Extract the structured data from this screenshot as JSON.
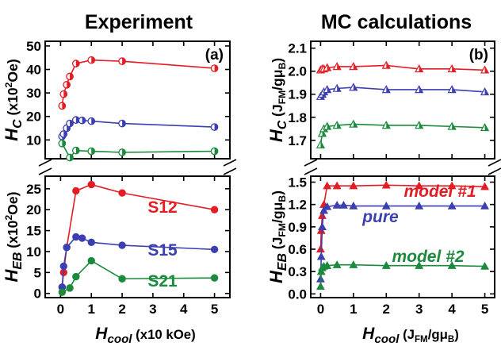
{
  "chart_data": [
    {
      "type": "line",
      "column_title": "Experiment",
      "panel_label": "(a)",
      "x_label": {
        "main": "H",
        "sub": "cool",
        "units": " (x10 kOe)"
      },
      "x_ticks": [
        "0",
        "1",
        "2",
        "3",
        "4",
        "5"
      ],
      "x_range": [
        -0.5,
        5.5
      ],
      "top": {
        "y_label": {
          "main": "H",
          "sub": "C",
          "units": " (x10",
          "sup": "2",
          "units_end": "Oe)"
        },
        "y_ticks": [
          "10",
          "20",
          "30",
          "40",
          "50"
        ],
        "y_range": [
          2,
          52
        ],
        "series": [
          {
            "color": "#e41c24",
            "x": [
              0.05,
              0.1,
              0.2,
              0.3,
              0.5,
              1,
              2,
              5
            ],
            "y": [
              24.5,
              29.5,
              33.5,
              37,
              42.5,
              44,
              43.5,
              40.5
            ]
          },
          {
            "color": "#3b3fb0",
            "x": [
              0.05,
              0.1,
              0.2,
              0.3,
              0.5,
              0.7,
              1,
              2,
              5
            ],
            "y": [
              11.5,
              12.5,
              15,
              17,
              18.5,
              18.3,
              18,
              17,
              15.5
            ]
          },
          {
            "color": "#1b8a3c",
            "x": [
              0.05,
              0.3,
              0.5,
              1,
              2,
              5
            ],
            "y": [
              8.5,
              2.5,
              5.5,
              5.2,
              4.7,
              5.2
            ]
          }
        ]
      },
      "bottom": {
        "y_label": {
          "main": "H",
          "sub": "EB",
          "units": " (x10",
          "sup": "2",
          "units_end": "Oe)"
        },
        "y_ticks": [
          "0",
          "5",
          "10",
          "15",
          "20",
          "25"
        ],
        "y_range": [
          -1,
          28
        ],
        "series": [
          {
            "name": "S12",
            "color": "#e41c24",
            "x": [
              0.05,
              0.1,
              0.2,
              0.5,
              1,
              2,
              5
            ],
            "y": [
              1.5,
              5,
              11,
              24.5,
              26,
              24,
              20
            ]
          },
          {
            "name": "S15",
            "color": "#3b3fb0",
            "x": [
              0.05,
              0.1,
              0.2,
              0.5,
              0.7,
              1,
              2,
              5
            ],
            "y": [
              1.5,
              6.5,
              11,
              13.5,
              13.2,
              12.2,
              11.5,
              10.5
            ]
          },
          {
            "name": "S21",
            "color": "#1b8a3c",
            "x": [
              0.05,
              0.3,
              0.5,
              1,
              2,
              5
            ],
            "y": [
              0.3,
              1.3,
              4,
              7.8,
              3.5,
              3.7
            ]
          }
        ]
      }
    },
    {
      "type": "line",
      "column_title": "MC calculations",
      "panel_label": "(b)",
      "x_label": {
        "main": "H",
        "sub": "cool",
        "units": " (J",
        "units_sub": "FM",
        "units_end": "/gμ",
        "units_end_sub": "B",
        "units_close": ")"
      },
      "x_ticks": [
        "0",
        "1",
        "2",
        "3",
        "4",
        "5"
      ],
      "x_range": [
        -0.3,
        5.3
      ],
      "top": {
        "y_label": {
          "main": "H",
          "sub": "C",
          "units": " (J",
          "units_sub": "FM",
          "units_end": "/gμ",
          "units_end_sub": "B",
          "units_close": ")"
        },
        "y_ticks": [
          "1.7",
          "1.8",
          "1.9",
          "2.0",
          "2.1"
        ],
        "y_range": [
          1.62,
          2.13
        ],
        "series": [
          {
            "color": "#e41c24",
            "x": [
              0,
              0.05,
              0.1,
              0.2,
              0.5,
              1,
              2,
              3,
              4,
              5
            ],
            "y": [
              2.005,
              2.01,
              2.01,
              2.015,
              2.02,
              2.02,
              2.025,
              2.01,
              2.01,
              2.005
            ]
          },
          {
            "color": "#3b3fb0",
            "x": [
              0,
              0.05,
              0.1,
              0.2,
              0.5,
              1,
              2,
              3,
              4,
              5
            ],
            "y": [
              1.89,
              1.9,
              1.91,
              1.92,
              1.925,
              1.93,
              1.92,
              1.92,
              1.92,
              1.91
            ]
          },
          {
            "color": "#1b8a3c",
            "x": [
              0,
              0.05,
              0.1,
              0.2,
              0.5,
              1,
              2,
              3,
              4,
              5
            ],
            "y": [
              1.68,
              1.73,
              1.75,
              1.76,
              1.765,
              1.77,
              1.765,
              1.765,
              1.76,
              1.755
            ]
          }
        ]
      },
      "bottom": {
        "y_label": {
          "main": "H",
          "sub": "EB",
          "units": " (J",
          "units_sub": "FM",
          "units_end": "/gμ",
          "units_end_sub": "B",
          "units_close": ")"
        },
        "y_ticks": [
          "0.0",
          "0.3",
          "0.6",
          "0.9",
          "1.2",
          "1.5"
        ],
        "y_range": [
          -0.05,
          1.58
        ],
        "series": [
          {
            "name": "model #1",
            "color": "#e41c24",
            "x": [
              0,
              0.02,
              0.05,
              0.1,
              0.2,
              0.5,
              1,
              2,
              3,
              4,
              5
            ],
            "y": [
              0.6,
              0.85,
              1.05,
              1.2,
              1.45,
              1.45,
              1.45,
              1.46,
              1.45,
              1.45,
              1.44
            ]
          },
          {
            "name": "pure",
            "color": "#3b3fb0",
            "x": [
              0,
              0.02,
              0.05,
              0.1,
              0.2,
              0.5,
              0.7,
              1,
              2,
              3,
              4,
              5
            ],
            "y": [
              0.2,
              0.5,
              0.9,
              1.12,
              1.17,
              1.19,
              1.19,
              1.18,
              1.18,
              1.18,
              1.18,
              1.18
            ]
          },
          {
            "name": "model #2",
            "color": "#1b8a3c",
            "x": [
              0,
              0.02,
              0.05,
              0.1,
              0.2,
              0.5,
              1,
              2,
              3,
              4,
              5
            ],
            "y": [
              0.1,
              0.3,
              0.35,
              0.37,
              0.38,
              0.39,
              0.39,
              0.38,
              0.38,
              0.38,
              0.37
            ]
          }
        ]
      }
    }
  ]
}
